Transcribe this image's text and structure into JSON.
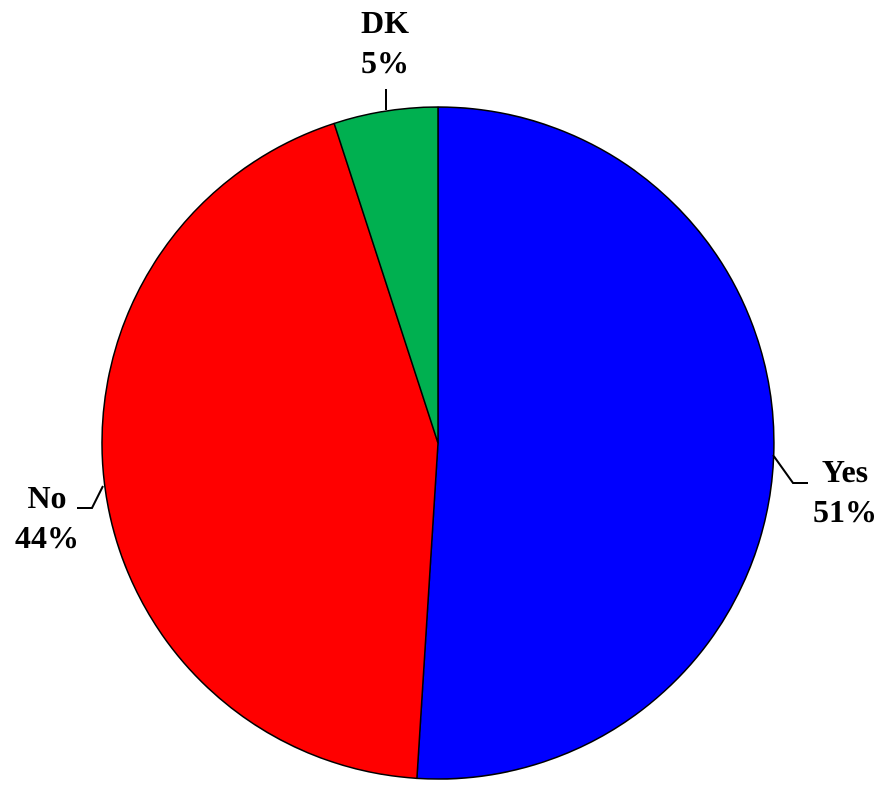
{
  "chart_data": {
    "type": "pie",
    "title": "",
    "slices": [
      {
        "label": "Yes",
        "value": 51,
        "value_label": "51%",
        "color": "#0000FF"
      },
      {
        "label": "No",
        "value": 44,
        "value_label": "44%",
        "color": "#FF0000"
      },
      {
        "label": "DK",
        "value": 5,
        "value_label": "5%",
        "color": "#00B050"
      }
    ],
    "start": "12 o'clock",
    "direction": "clockwise",
    "legend": "none",
    "label_style": "outside with leader lines"
  }
}
